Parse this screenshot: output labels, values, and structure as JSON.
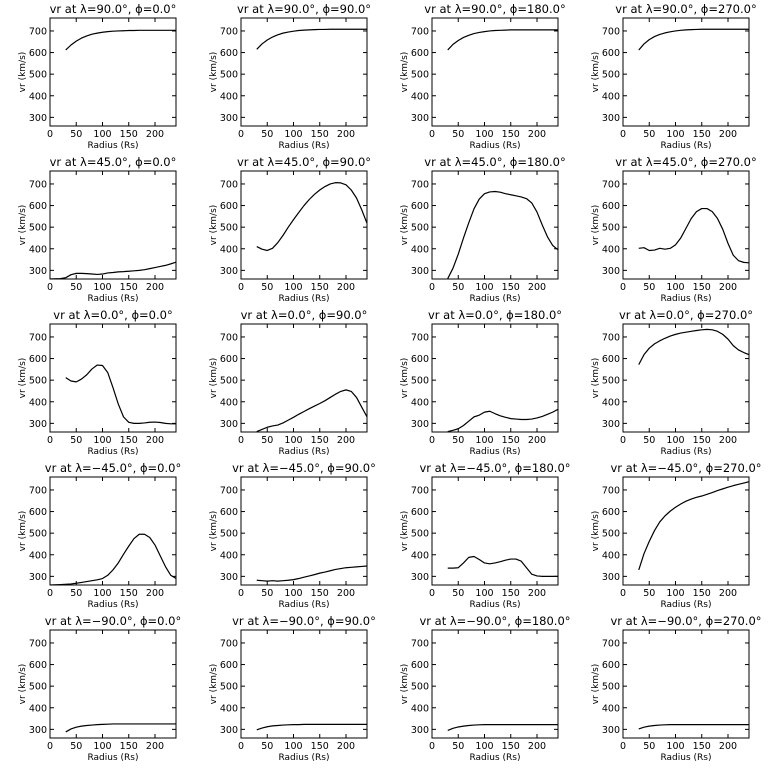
{
  "figure": {
    "x_tick_labels": [
      "0",
      "50",
      "100",
      "150",
      "200"
    ],
    "y_tick_labels": [
      "300",
      "400",
      "500",
      "600",
      "700"
    ]
  },
  "chart_data": [
    {
      "type": "line",
      "title": "v_r at λ=90.0°, ϕ=0.0°",
      "title_text": "vr at λ=90.0°, ϕ=0.0°",
      "xlabel": "Radius (Rs)",
      "ylabel": "vr (km/s)",
      "xlim": [
        0,
        240
      ],
      "ylim": [
        260,
        760
      ],
      "x": [
        30,
        40,
        50,
        60,
        70,
        80,
        90,
        100,
        110,
        120,
        130,
        140,
        150,
        160,
        170,
        180,
        190,
        200,
        210,
        220,
        230,
        240
      ],
      "values": [
        612,
        635,
        653,
        667,
        677,
        685,
        690,
        694,
        697,
        699,
        700,
        701,
        702,
        702,
        703,
        703,
        703,
        703,
        703,
        703,
        703,
        703
      ]
    },
    {
      "type": "line",
      "title": "v_r at λ=90.0°, ϕ=90.0°",
      "title_text": "vr at λ=90.0°, ϕ=90.0°",
      "xlabel": "Radius (Rs)",
      "ylabel": "vr (km/s)",
      "xlim": [
        0,
        240
      ],
      "ylim": [
        260,
        760
      ],
      "x": [
        30,
        40,
        50,
        60,
        70,
        80,
        90,
        100,
        110,
        120,
        130,
        140,
        150,
        160,
        170,
        180,
        190,
        200,
        210,
        220,
        230,
        240
      ],
      "values": [
        615,
        640,
        658,
        672,
        682,
        690,
        695,
        699,
        702,
        704,
        705,
        706,
        707,
        707,
        708,
        708,
        708,
        708,
        708,
        708,
        708,
        708
      ]
    },
    {
      "type": "line",
      "title": "v_r at λ=90.0°, ϕ=180.0°",
      "title_text": "vr at λ=90.0°, ϕ=180.0°",
      "xlabel": "Radius (Rs)",
      "ylabel": "vr (km/s)",
      "xlim": [
        0,
        240
      ],
      "ylim": [
        260,
        760
      ],
      "x": [
        30,
        40,
        50,
        60,
        70,
        80,
        90,
        100,
        110,
        120,
        130,
        140,
        150,
        160,
        170,
        180,
        190,
        200,
        210,
        220,
        230,
        240
      ],
      "values": [
        612,
        638,
        656,
        670,
        680,
        688,
        693,
        697,
        700,
        702,
        703,
        704,
        705,
        705,
        705,
        705,
        705,
        705,
        705,
        705,
        705,
        705
      ]
    },
    {
      "type": "line",
      "title": "v_r at λ=90.0°, ϕ=270.0°",
      "title_text": "vr at λ=90.0°, ϕ=270.0°",
      "xlabel": "Radius (Rs)",
      "ylabel": "vr (km/s)",
      "xlim": [
        0,
        240
      ],
      "ylim": [
        260,
        760
      ],
      "x": [
        30,
        40,
        50,
        60,
        70,
        80,
        90,
        100,
        110,
        120,
        130,
        140,
        150,
        160,
        170,
        180,
        190,
        200,
        210,
        220,
        230,
        240
      ],
      "values": [
        612,
        640,
        660,
        674,
        684,
        691,
        696,
        700,
        703,
        705,
        706,
        707,
        708,
        708,
        708,
        708,
        708,
        708,
        708,
        708,
        708,
        708
      ]
    },
    {
      "type": "line",
      "title": "v_r at λ=45.0°, ϕ=0.0°",
      "title_text": "vr at λ=45.0°, ϕ=0.0°",
      "xlabel": "Radius (Rs)",
      "ylabel": "vr (km/s)",
      "xlim": [
        0,
        240
      ],
      "ylim": [
        260,
        760
      ],
      "x": [
        0,
        20,
        30,
        40,
        50,
        60,
        70,
        80,
        90,
        100,
        110,
        120,
        130,
        140,
        150,
        160,
        170,
        180,
        190,
        200,
        210,
        220,
        230,
        240
      ],
      "values": [
        260,
        262,
        266,
        280,
        286,
        286,
        285,
        283,
        281,
        283,
        288,
        290,
        293,
        294,
        296,
        298,
        300,
        303,
        308,
        313,
        318,
        323,
        330,
        338
      ]
    },
    {
      "type": "line",
      "title": "v_r at λ=45.0°, ϕ=90.0°",
      "title_text": "vr at λ=45.0°, ϕ=90.0°",
      "xlabel": "Radius (Rs)",
      "ylabel": "vr (km/s)",
      "xlim": [
        0,
        240
      ],
      "ylim": [
        260,
        760
      ],
      "x": [
        30,
        40,
        50,
        60,
        70,
        80,
        90,
        100,
        110,
        120,
        130,
        140,
        150,
        160,
        170,
        180,
        190,
        200,
        210,
        220,
        230,
        240
      ],
      "values": [
        410,
        398,
        392,
        402,
        428,
        462,
        500,
        535,
        568,
        600,
        628,
        652,
        672,
        688,
        700,
        706,
        705,
        696,
        672,
        635,
        580,
        518
      ]
    },
    {
      "type": "line",
      "title": "v_r at λ=45.0°, ϕ=180.0°",
      "title_text": "vr at λ=45.0°, ϕ=180.0°",
      "xlabel": "Radius (Rs)",
      "ylabel": "vr (km/s)",
      "xlim": [
        0,
        240
      ],
      "ylim": [
        260,
        760
      ],
      "x": [
        30,
        40,
        50,
        60,
        70,
        80,
        90,
        100,
        110,
        120,
        130,
        140,
        150,
        160,
        170,
        180,
        190,
        200,
        210,
        220,
        230,
        240
      ],
      "values": [
        262,
        310,
        375,
        450,
        520,
        585,
        630,
        655,
        663,
        665,
        662,
        655,
        650,
        645,
        640,
        632,
        612,
        570,
        510,
        455,
        415,
        395
      ]
    },
    {
      "type": "line",
      "title": "v_r at λ=45.0°, ϕ=270.0°",
      "title_text": "vr at λ=45.0°, ϕ=270.0°",
      "xlabel": "Radius (Rs)",
      "ylabel": "vr (km/s)",
      "xlim": [
        0,
        240
      ],
      "ylim": [
        260,
        760
      ],
      "x": [
        30,
        40,
        50,
        60,
        70,
        80,
        90,
        100,
        110,
        120,
        130,
        140,
        150,
        160,
        170,
        180,
        190,
        200,
        210,
        220,
        230,
        240
      ],
      "values": [
        402,
        405,
        392,
        394,
        402,
        398,
        402,
        418,
        450,
        495,
        540,
        572,
        586,
        586,
        572,
        540,
        490,
        425,
        370,
        345,
        337,
        335
      ]
    },
    {
      "type": "line",
      "title": "v_r at λ=0.0°, ϕ=0.0°",
      "title_text": "vr at λ=0.0°, ϕ=0.0°",
      "xlabel": "Radius (Rs)",
      "ylabel": "vr (km/s)",
      "xlim": [
        0,
        240
      ],
      "ylim": [
        260,
        760
      ],
      "x": [
        30,
        40,
        50,
        60,
        70,
        80,
        90,
        100,
        110,
        120,
        130,
        140,
        150,
        160,
        170,
        180,
        190,
        200,
        210,
        220,
        230,
        240
      ],
      "values": [
        512,
        496,
        492,
        505,
        525,
        552,
        570,
        568,
        535,
        465,
        390,
        330,
        305,
        300,
        300,
        302,
        305,
        306,
        304,
        300,
        298,
        298
      ]
    },
    {
      "type": "line",
      "title": "v_r at λ=0.0°, ϕ=90.0°",
      "title_text": "vr at λ=0.0°, ϕ=90.0°",
      "xlabel": "Radius (Rs)",
      "ylabel": "vr (km/s)",
      "xlim": [
        0,
        240
      ],
      "ylim": [
        260,
        760
      ],
      "x": [
        30,
        40,
        50,
        60,
        70,
        80,
        90,
        100,
        110,
        120,
        130,
        140,
        150,
        160,
        170,
        180,
        190,
        200,
        210,
        220,
        230,
        240
      ],
      "values": [
        262,
        272,
        282,
        288,
        292,
        302,
        315,
        328,
        342,
        355,
        368,
        380,
        392,
        405,
        420,
        435,
        448,
        455,
        448,
        420,
        375,
        330
      ]
    },
    {
      "type": "line",
      "title": "v_r at λ=0.0°, ϕ=180.0°",
      "title_text": "vr at λ=0.0°, ϕ=180.0°",
      "xlabel": "Radius (Rs)",
      "ylabel": "vr (km/s)",
      "xlim": [
        0,
        240
      ],
      "ylim": [
        260,
        760
      ],
      "x": [
        30,
        40,
        50,
        60,
        70,
        80,
        90,
        100,
        110,
        120,
        130,
        140,
        150,
        160,
        170,
        180,
        190,
        200,
        210,
        220,
        230,
        240
      ],
      "values": [
        262,
        268,
        275,
        290,
        310,
        330,
        338,
        352,
        356,
        345,
        335,
        328,
        322,
        320,
        318,
        318,
        320,
        325,
        332,
        342,
        352,
        365
      ]
    },
    {
      "type": "line",
      "title": "v_r at λ=0.0°, ϕ=270.0°",
      "title_text": "vr at λ=0.0°, ϕ=270.0°",
      "xlabel": "Radius (Rs)",
      "ylabel": "vr (km/s)",
      "xlim": [
        0,
        240
      ],
      "ylim": [
        260,
        760
      ],
      "x": [
        30,
        40,
        50,
        60,
        70,
        80,
        90,
        100,
        110,
        120,
        130,
        140,
        150,
        160,
        170,
        180,
        190,
        200,
        210,
        220,
        230,
        240
      ],
      "values": [
        572,
        618,
        648,
        668,
        682,
        694,
        704,
        712,
        718,
        722,
        726,
        730,
        733,
        735,
        733,
        726,
        712,
        690,
        660,
        640,
        628,
        618
      ]
    },
    {
      "type": "line",
      "title": "v_r at λ=−45.0°, ϕ=0.0°",
      "title_text": "vr at λ=−45.0°, ϕ=0.0°",
      "xlabel": "Radius (Rs)",
      "ylabel": "vr (km/s)",
      "xlim": [
        0,
        240
      ],
      "ylim": [
        260,
        760
      ],
      "x": [
        0,
        20,
        40,
        50,
        60,
        70,
        80,
        90,
        100,
        110,
        120,
        130,
        140,
        150,
        160,
        170,
        180,
        190,
        200,
        210,
        220,
        230,
        240
      ],
      "values": [
        260,
        262,
        265,
        268,
        272,
        276,
        280,
        284,
        290,
        305,
        330,
        362,
        402,
        440,
        475,
        495,
        495,
        480,
        445,
        395,
        345,
        305,
        290
      ]
    },
    {
      "type": "line",
      "title": "v_r at λ=−45.0°, ϕ=90.0°",
      "title_text": "vr at λ=−45.0°, ϕ=90.0°",
      "xlabel": "Radius (Rs)",
      "ylabel": "vr (km/s)",
      "xlim": [
        0,
        240
      ],
      "ylim": [
        260,
        760
      ],
      "x": [
        30,
        40,
        50,
        60,
        70,
        80,
        90,
        100,
        110,
        120,
        130,
        140,
        150,
        160,
        170,
        180,
        190,
        200,
        210,
        220,
        230,
        240
      ],
      "values": [
        282,
        280,
        278,
        280,
        278,
        280,
        282,
        285,
        290,
        296,
        302,
        308,
        315,
        320,
        326,
        332,
        336,
        340,
        342,
        344,
        346,
        348
      ]
    },
    {
      "type": "line",
      "title": "v_r at λ=−45.0°, ϕ=180.0°",
      "title_text": "vr at λ=−45.0°, ϕ=180.0°",
      "xlabel": "Radius (Rs)",
      "ylabel": "vr (km/s)",
      "xlim": [
        0,
        240
      ],
      "ylim": [
        260,
        760
      ],
      "x": [
        30,
        40,
        50,
        60,
        70,
        80,
        90,
        100,
        110,
        120,
        130,
        140,
        150,
        160,
        170,
        180,
        190,
        200,
        210,
        220,
        230,
        240
      ],
      "values": [
        338,
        338,
        340,
        362,
        388,
        392,
        378,
        362,
        358,
        362,
        368,
        375,
        380,
        380,
        370,
        340,
        310,
        302,
        300,
        300,
        300,
        300
      ]
    },
    {
      "type": "line",
      "title": "v_r at λ=−45.0°, ϕ=270.0°",
      "title_text": "vr at λ=−45.0°, ϕ=270.0°",
      "xlabel": "Radius (Rs)",
      "ylabel": "vr (km/s)",
      "xlim": [
        0,
        240
      ],
      "ylim": [
        260,
        760
      ],
      "x": [
        30,
        40,
        50,
        60,
        70,
        80,
        90,
        100,
        110,
        120,
        130,
        140,
        150,
        160,
        170,
        180,
        190,
        200,
        210,
        220,
        230,
        240
      ],
      "values": [
        330,
        405,
        462,
        512,
        552,
        580,
        602,
        620,
        635,
        648,
        658,
        666,
        672,
        680,
        688,
        697,
        705,
        713,
        720,
        726,
        732,
        738
      ]
    },
    {
      "type": "line",
      "title": "v_r at λ=−90.0°, ϕ=0.0°",
      "title_text": "vr at λ=−90.0°, ϕ=0.0°",
      "xlabel": "Radius (Rs)",
      "ylabel": "vr (km/s)",
      "xlim": [
        0,
        240
      ],
      "ylim": [
        260,
        760
      ],
      "x": [
        30,
        40,
        50,
        60,
        70,
        80,
        90,
        100,
        110,
        120,
        130,
        140,
        150,
        160,
        170,
        180,
        190,
        200,
        210,
        220,
        230,
        240
      ],
      "values": [
        288,
        302,
        310,
        315,
        318,
        320,
        322,
        323,
        324,
        325,
        325,
        325,
        325,
        325,
        325,
        325,
        325,
        325,
        325,
        325,
        325,
        325
      ]
    },
    {
      "type": "line",
      "title": "v_r at λ=−90.0°, ϕ=90.0°",
      "title_text": "vr at λ=−90.0°, ϕ=90.0°",
      "xlabel": "Radius (Rs)",
      "ylabel": "vr (km/s)",
      "xlim": [
        0,
        240
      ],
      "ylim": [
        260,
        760
      ],
      "x": [
        30,
        40,
        50,
        60,
        70,
        80,
        90,
        100,
        110,
        120,
        130,
        140,
        150,
        160,
        170,
        180,
        190,
        200,
        210,
        220,
        230,
        240
      ],
      "values": [
        298,
        306,
        312,
        316,
        318,
        320,
        321,
        322,
        322,
        323,
        323,
        323,
        323,
        323,
        323,
        323,
        323,
        323,
        323,
        323,
        323,
        323
      ]
    },
    {
      "type": "line",
      "title": "v_r at λ=−90.0°, ϕ=180.0°",
      "title_text": "vr at λ=−90.0°, ϕ=180.0°",
      "xlabel": "Radius (Rs)",
      "ylabel": "vr (km/s)",
      "xlim": [
        0,
        240
      ],
      "ylim": [
        260,
        760
      ],
      "x": [
        30,
        40,
        50,
        60,
        70,
        80,
        90,
        100,
        110,
        120,
        130,
        140,
        150,
        160,
        170,
        180,
        190,
        200,
        210,
        220,
        230,
        240
      ],
      "values": [
        295,
        305,
        311,
        315,
        318,
        320,
        321,
        322,
        322,
        322,
        322,
        322,
        322,
        322,
        322,
        322,
        322,
        322,
        322,
        322,
        322,
        322
      ]
    },
    {
      "type": "line",
      "title": "v_r at λ=−90.0°, ϕ=270.0°",
      "title_text": "vr at λ=−90.0°, ϕ=270.0°",
      "xlabel": "Radius (Rs)",
      "ylabel": "vr (km/s)",
      "xlim": [
        0,
        240
      ],
      "ylim": [
        260,
        760
      ],
      "x": [
        30,
        40,
        50,
        60,
        70,
        80,
        90,
        100,
        110,
        120,
        130,
        140,
        150,
        160,
        170,
        180,
        190,
        200,
        210,
        220,
        230,
        240
      ],
      "values": [
        302,
        310,
        315,
        318,
        320,
        321,
        322,
        322,
        322,
        322,
        322,
        322,
        322,
        322,
        322,
        322,
        322,
        322,
        322,
        322,
        322,
        322
      ]
    }
  ]
}
